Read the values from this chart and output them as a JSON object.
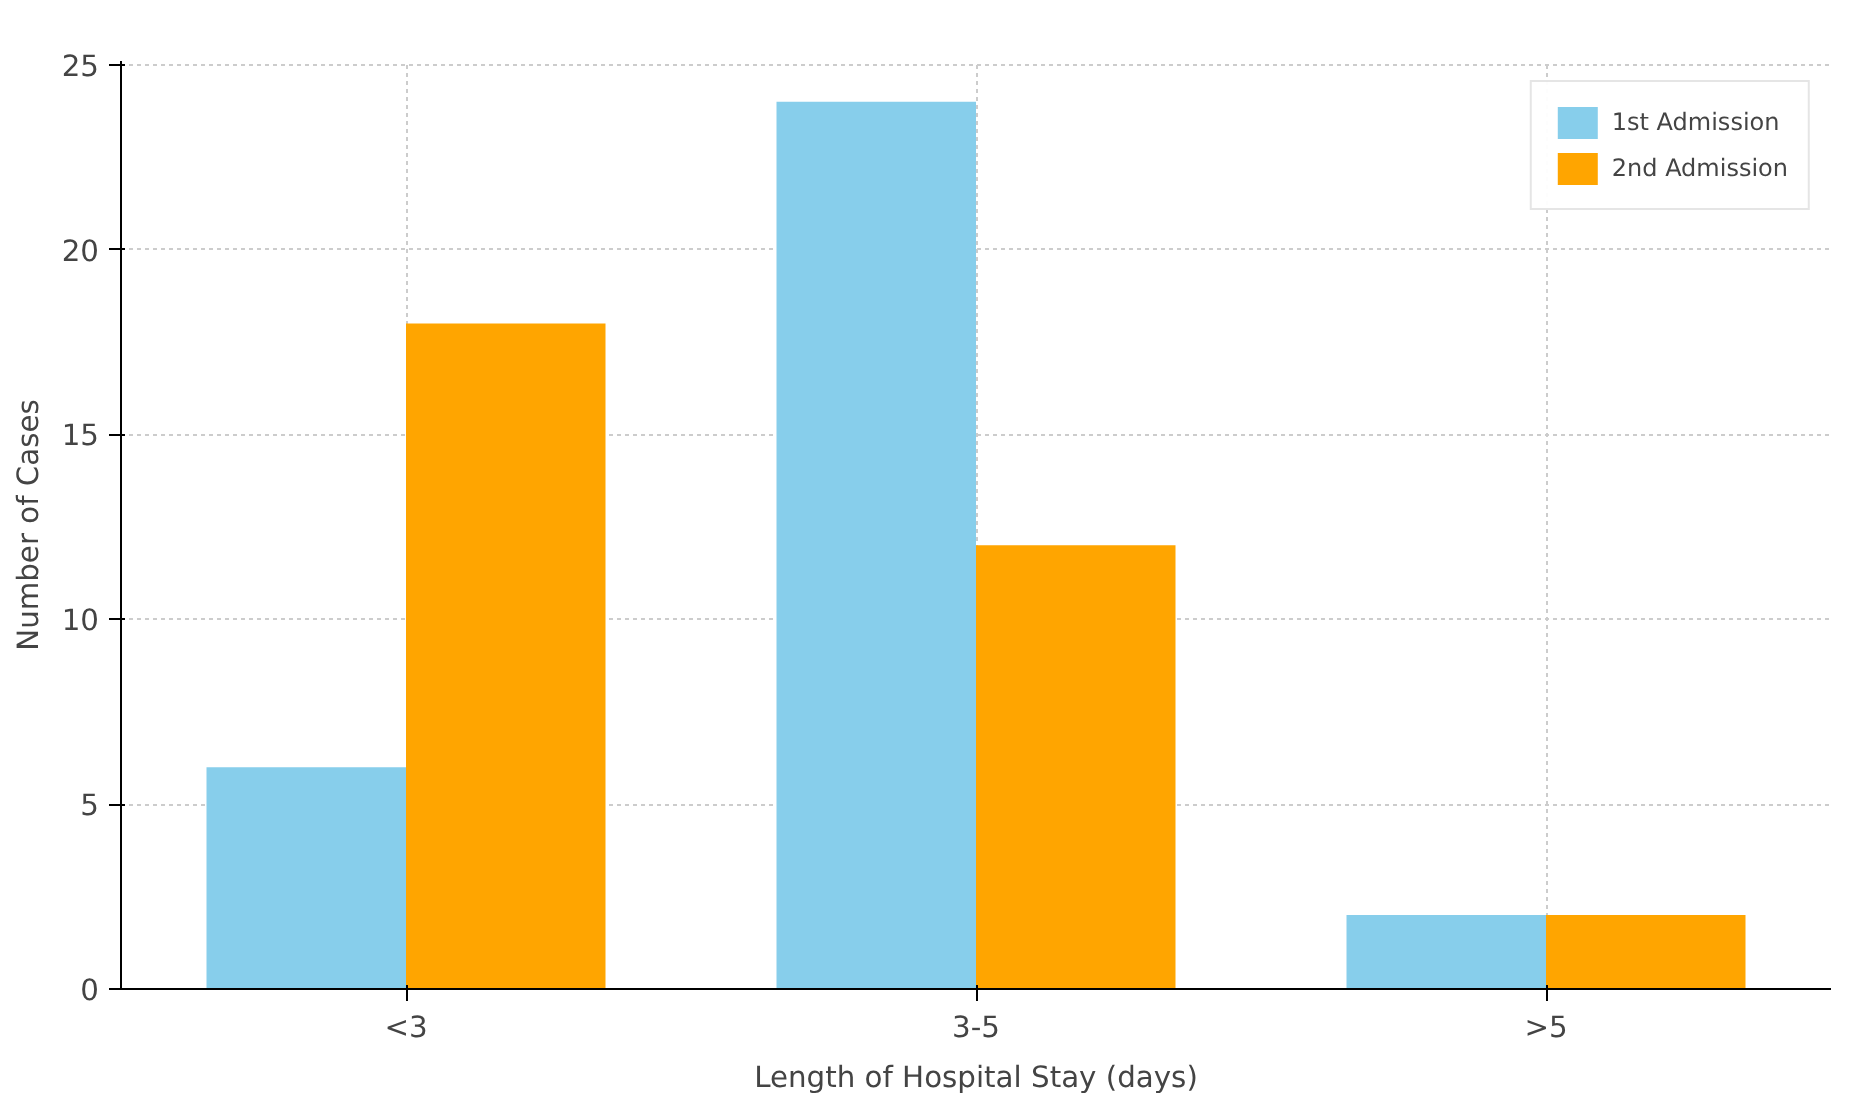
{
  "chart_data": {
    "type": "bar",
    "xlabel": "Length of Hospital Stay (days)",
    "ylabel": "Number of Cases",
    "categories": [
      "<3",
      "3-5",
      ">5"
    ],
    "series": [
      {
        "name": "1st Admission",
        "color": "#87ceeb",
        "values": [
          6,
          24,
          2
        ]
      },
      {
        "name": "2nd Admission",
        "color": "#ffa500",
        "values": [
          18,
          12,
          2
        ]
      }
    ],
    "ylim": [
      0,
      25.1
    ],
    "yticks": [
      0,
      5,
      10,
      15,
      20,
      25
    ],
    "grid": true,
    "legend": "top right"
  }
}
